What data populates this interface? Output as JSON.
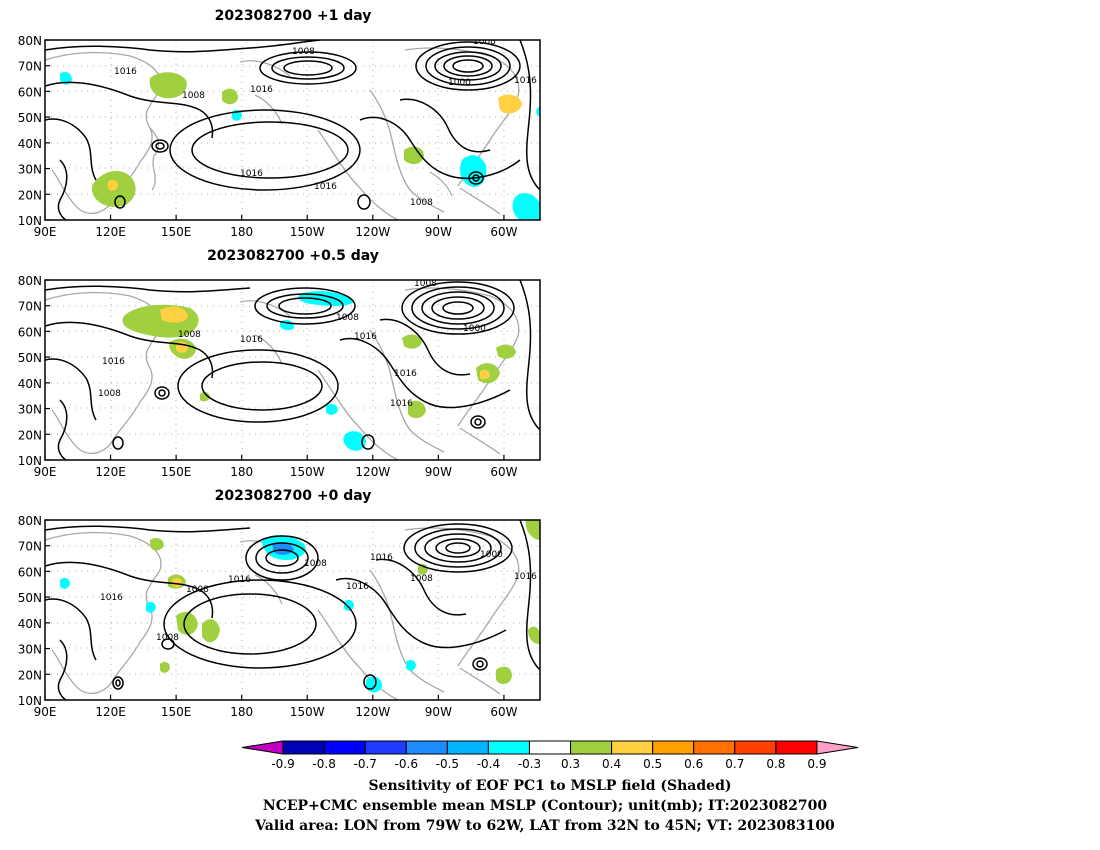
{
  "panels": [
    {
      "title": "2023082700  +1 day",
      "contour_labels": [
        "1008",
        "1016",
        "1008",
        "1016",
        "1016",
        "1016",
        "1008",
        "1000",
        "1016",
        "1008"
      ]
    },
    {
      "title": "2023082700  +0.5 day",
      "contour_labels": [
        "1008",
        "1016",
        "1016",
        "1008",
        "1016",
        "1008",
        "1016",
        "1016",
        "1000",
        "1008"
      ]
    },
    {
      "title": "2023082700  +0 day",
      "contour_labels": [
        "1016",
        "1008",
        "1016",
        "1008",
        "1008",
        "1016",
        "1016",
        "1008",
        "1000",
        "1016"
      ]
    }
  ],
  "axes": {
    "lat_ticks": [
      "80N",
      "70N",
      "60N",
      "50N",
      "40N",
      "30N",
      "20N",
      "10N"
    ],
    "lon_ticks": [
      "90E",
      "120E",
      "150E",
      "180",
      "150W",
      "120W",
      "90W",
      "60W"
    ]
  },
  "colorbar": {
    "labels": [
      "-0.9",
      "-0.8",
      "-0.7",
      "-0.6",
      "-0.5",
      "-0.4",
      "-0.3",
      "0.3",
      "0.4",
      "0.5",
      "0.6",
      "0.7",
      "0.8",
      "0.9"
    ],
    "colors": [
      "#c000c0",
      "#0000b4",
      "#0000ff",
      "#1e3cff",
      "#1e8cff",
      "#00b4ff",
      "#00ffff",
      "#ffffff",
      "#a0d040",
      "#ffd040",
      "#ffa000",
      "#ff7000",
      "#ff4000",
      "#ff0000",
      "#ffa0c8"
    ]
  },
  "caption": {
    "line1": "Sensitivity of EOF PC1 to MSLP field (Shaded)",
    "line2": "NCEP+CMC ensemble mean MSLP (Contour); unit(mb); IT:2023082700",
    "line3": "Valid area: LON from 79W to 62W, LAT from 32N to 45N; VT: 2023083100"
  }
}
